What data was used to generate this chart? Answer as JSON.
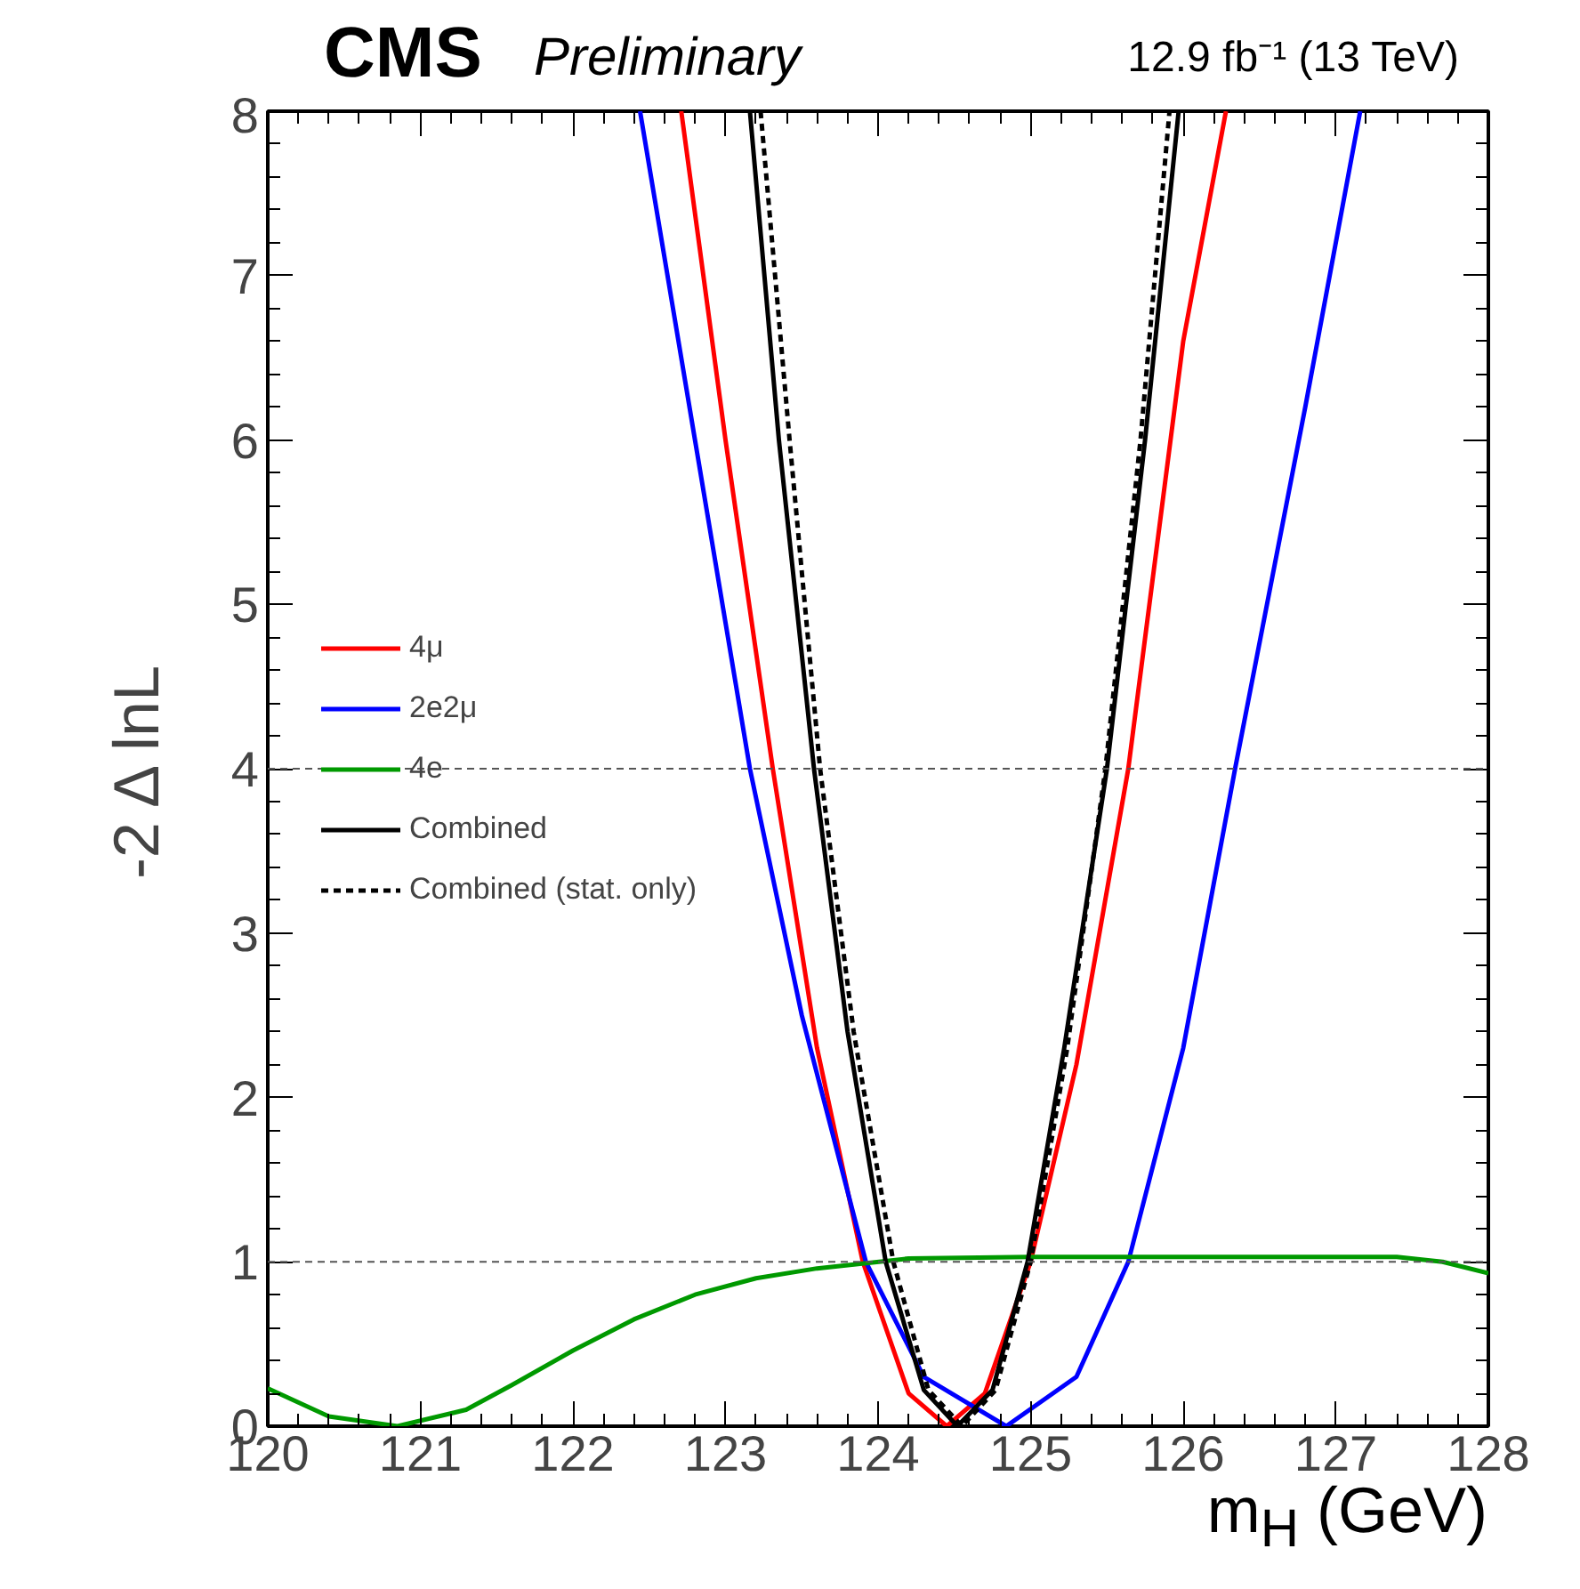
{
  "chart_data": {
    "type": "line",
    "title": "CMS",
    "subtitle": "Preliminary",
    "xlabel": "m$_{H}$ (GeV)",
    "ylabel": "-2 Δ lnL",
    "annotations": [
      "12.9 fb⁻¹ (13 TeV)"
    ],
    "xlim": [
      120,
      128
    ],
    "xticks": [
      120,
      121,
      122,
      123,
      124,
      125,
      126,
      127,
      128
    ],
    "ylim": [
      0,
      8
    ],
    "yticks": [
      0,
      1,
      2,
      3,
      4,
      5,
      6,
      7,
      8
    ],
    "grid": false,
    "legend": "left",
    "line_style": "solid",
    "marker": "none",
    "ref_lines": [
      {
        "axis": "y",
        "value": 1,
        "label": null,
        "color": "#555555",
        "line_style": "dashed"
      },
      {
        "axis": "y",
        "value": 4,
        "label": null,
        "color": "#555555",
        "line_style": "dashed"
      }
    ],
    "series": [
      {
        "name": "4μ",
        "color": "#ff0000",
        "x": [
          122.71,
          123.0,
          123.31,
          123.6,
          123.9,
          124.2,
          124.45,
          124.7,
          125.0,
          125.3,
          125.64,
          126.0,
          126.28
        ],
        "values": [
          8,
          6.0,
          4,
          2.3,
          1.0,
          0.2,
          0,
          0.2,
          1.0,
          2.2,
          4,
          6.6,
          8
        ]
      },
      {
        "name": "2e2μ",
        "color": "#0000ff",
        "x": [
          122.44,
          122.8,
          123.16,
          123.5,
          123.92,
          124.3,
          124.84,
          125.3,
          125.64,
          126.0,
          126.34,
          126.8,
          127.16
        ],
        "values": [
          8,
          6.0,
          4,
          2.5,
          1,
          0.3,
          0,
          0.3,
          1,
          2.3,
          4,
          6.2,
          8
        ]
      },
      {
        "name": "4e",
        "color": "#009900",
        "x": [
          120,
          120.4,
          120.85,
          121.3,
          121.6,
          122.0,
          122.4,
          122.8,
          123.2,
          123.6,
          124.2,
          125,
          126,
          127.4,
          127.7,
          128
        ],
        "values": [
          0.23,
          0.06,
          0,
          0.1,
          0.25,
          0.46,
          0.65,
          0.8,
          0.9,
          0.96,
          1.02,
          1.03,
          1.03,
          1.03,
          1.0,
          0.93
        ]
      },
      {
        "name": "Combined",
        "color": "#000000",
        "x": [
          123.16,
          123.35,
          123.58,
          123.8,
          124.05,
          124.3,
          124.52,
          124.75,
          124.98,
          125.22,
          125.5,
          125.75,
          125.97
        ],
        "values": [
          8,
          6,
          4,
          2.4,
          1,
          0.22,
          0,
          0.22,
          1,
          2.3,
          4,
          6,
          8
        ]
      },
      {
        "name": "Combined (stat. only)",
        "color": "#000000",
        "line_style": "dashed",
        "x": [
          123.23,
          123.42,
          123.62,
          123.84,
          124.1,
          124.33,
          124.55,
          124.77,
          125.0,
          125.24,
          125.49,
          125.72,
          125.91
        ],
        "values": [
          8,
          6,
          4,
          2.4,
          1,
          0.22,
          0,
          0.22,
          1,
          2.3,
          4,
          6,
          8
        ]
      }
    ]
  }
}
